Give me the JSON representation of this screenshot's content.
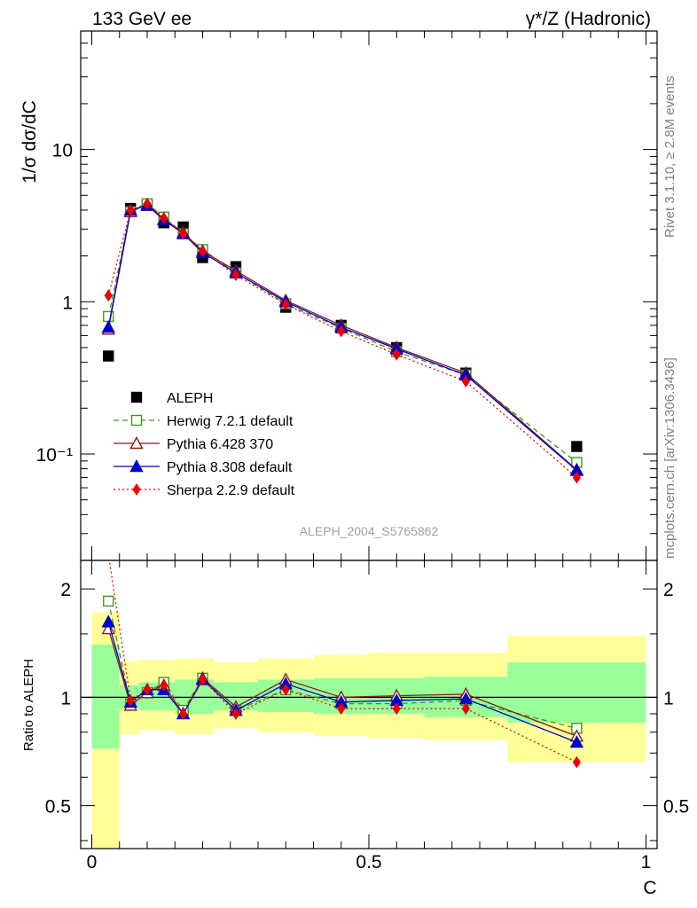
{
  "header": {
    "left": "133 GeV ee",
    "right": "γ*/Z (Hadronic)"
  },
  "side": {
    "rivet": "Rivet 3.1.10, ≥ 2.8M events",
    "mcplots": "mcplots.cern.ch [arXiv:1306.3436]"
  },
  "watermark": "ALEPH_2004_S5765862",
  "chart_data": [
    {
      "type": "line",
      "panel": "main",
      "ylabel": "1/σ  dσ/dC",
      "yscale": "log",
      "ylim": [
        0.02,
        60
      ],
      "xlim": [
        -0.02,
        1.02
      ],
      "y_tick_labels": [
        "10",
        "1",
        "10⁻¹"
      ],
      "y_tick_values": [
        10,
        1,
        0.1
      ],
      "legend_position": "bottom-left",
      "x": [
        0.03,
        0.07,
        0.1,
        0.13,
        0.165,
        0.2,
        0.26,
        0.35,
        0.45,
        0.55,
        0.675,
        0.875
      ],
      "series": [
        {
          "name": "ALEPH",
          "color": "#000000",
          "marker": "square",
          "line": "none",
          "values": [
            0.44,
            4.1,
            4.3,
            3.3,
            3.1,
            1.95,
            1.7,
            0.92,
            0.7,
            0.5,
            0.34,
            0.112
          ]
        },
        {
          "name": "Herwig 7.2.1 default",
          "color": "#3a9a1a",
          "marker": "open-square",
          "line": "dashed",
          "values": [
            0.8,
            3.9,
            4.4,
            3.6,
            2.8,
            2.2,
            1.55,
            0.97,
            0.67,
            0.47,
            0.33,
            0.088
          ]
        },
        {
          "name": "Pythia 6.428 370",
          "color": "#8b1a1a",
          "marker": "open-triangle",
          "line": "solid",
          "values": [
            0.66,
            3.9,
            4.35,
            3.5,
            2.85,
            2.15,
            1.6,
            1.02,
            0.7,
            0.5,
            0.34,
            0.079
          ]
        },
        {
          "name": "Pythia 8.308 default",
          "color": "#0000cc",
          "marker": "triangle",
          "line": "solid",
          "values": [
            0.68,
            4.0,
            4.3,
            3.45,
            2.8,
            2.1,
            1.55,
            1.0,
            0.68,
            0.49,
            0.33,
            0.078
          ]
        },
        {
          "name": "Sherpa 2.2.9 default",
          "color": "#ee0000",
          "marker": "diamond",
          "line": "dotted",
          "values": [
            1.1,
            4.0,
            4.4,
            3.55,
            2.8,
            2.15,
            1.5,
            0.96,
            0.64,
            0.45,
            0.3,
            0.07
          ]
        }
      ]
    },
    {
      "type": "line",
      "panel": "ratio",
      "ylabel": "Ratio to ALEPH",
      "xlabel": "C",
      "yscale": "log",
      "ylim": [
        0.38,
        2.4
      ],
      "xlim": [
        -0.02,
        1.02
      ],
      "y_tick_labels": [
        "2",
        "1",
        "0.5"
      ],
      "y_tick_values": [
        2,
        1,
        0.5
      ],
      "x_tick_labels": [
        "0",
        "0.5",
        "1"
      ],
      "x_tick_values": [
        0,
        0.5,
        1
      ],
      "reference_line": 1,
      "bands": {
        "edges": [
          0.0,
          0.05,
          0.085,
          0.115,
          0.15,
          0.18,
          0.22,
          0.3,
          0.4,
          0.5,
          0.6,
          0.75,
          1.0
        ],
        "green": [
          [
            0.72,
            1.4
          ],
          [
            0.93,
            1.08
          ],
          [
            0.92,
            1.1
          ],
          [
            0.92,
            1.1
          ],
          [
            0.9,
            1.12
          ],
          [
            0.9,
            1.12
          ],
          [
            0.92,
            1.1
          ],
          [
            0.91,
            1.12
          ],
          [
            0.9,
            1.13
          ],
          [
            0.9,
            1.13
          ],
          [
            0.88,
            1.14
          ],
          [
            0.85,
            1.25
          ]
        ],
        "yellow": [
          [
            0.37,
            1.72
          ],
          [
            0.79,
            1.26
          ],
          [
            0.81,
            1.27
          ],
          [
            0.81,
            1.27
          ],
          [
            0.79,
            1.28
          ],
          [
            0.79,
            1.28
          ],
          [
            0.82,
            1.25
          ],
          [
            0.8,
            1.28
          ],
          [
            0.78,
            1.31
          ],
          [
            0.77,
            1.33
          ],
          [
            0.76,
            1.33
          ],
          [
            0.66,
            1.48
          ]
        ]
      },
      "series": [
        {
          "name": "Herwig 7.2.1 default",
          "color": "#3a9a1a",
          "marker": "open-square",
          "line": "dashed",
          "values": [
            1.85,
            0.96,
            1.03,
            1.1,
            0.92,
            1.13,
            0.92,
            1.05,
            0.96,
            0.96,
            0.98,
            0.82
          ]
        },
        {
          "name": "Pythia 6.428 370",
          "color": "#8b1a1a",
          "marker": "open-triangle",
          "line": "solid",
          "values": [
            1.55,
            0.95,
            1.03,
            1.08,
            0.9,
            1.13,
            0.94,
            1.12,
            1.0,
            1.01,
            1.02,
            0.78
          ]
        },
        {
          "name": "Pythia 8.308 default",
          "color": "#0000cc",
          "marker": "triangle",
          "line": "solid",
          "values": [
            1.62,
            0.97,
            1.05,
            1.05,
            0.9,
            1.12,
            0.92,
            1.09,
            0.97,
            0.98,
            0.99,
            0.75
          ]
        },
        {
          "name": "Sherpa 2.2.9 default",
          "color": "#ee0000",
          "marker": "diamond",
          "line": "dotted",
          "values": [
            2.5,
            0.98,
            1.05,
            1.08,
            0.9,
            1.12,
            0.9,
            1.05,
            0.93,
            0.93,
            0.93,
            0.66
          ]
        }
      ]
    }
  ]
}
